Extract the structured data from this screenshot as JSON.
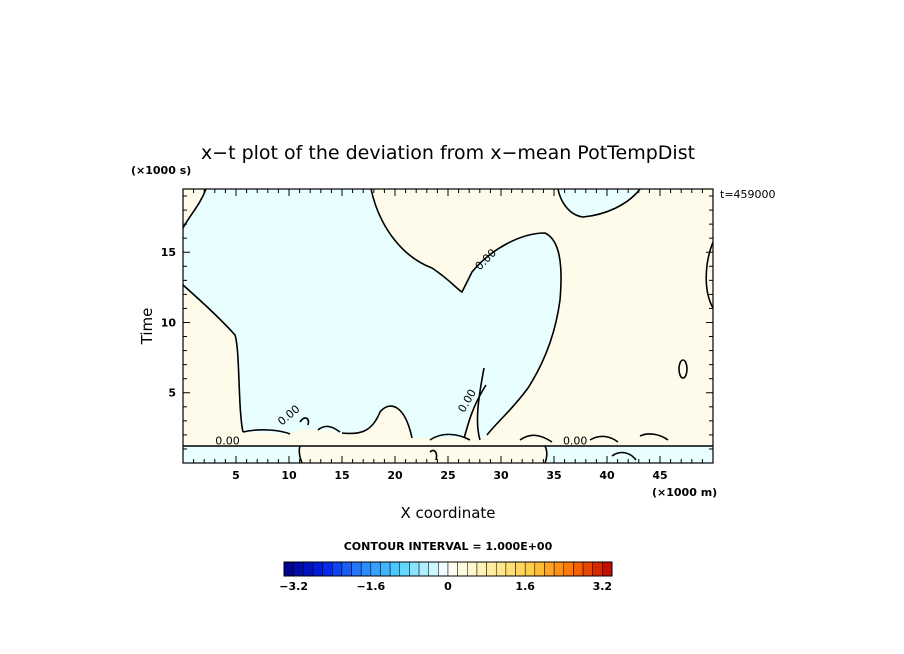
{
  "chart_data": {
    "type": "heatmap",
    "title": "x−t plot of the deviation from x−mean PotTempDist",
    "xlabel": "X coordinate",
    "ylabel": "Time",
    "x_unit": "(×1000 m)",
    "y_unit": "(×1000 s)",
    "time_stamp": "t=459000",
    "xlim": [
      0,
      50
    ],
    "ylim": [
      0,
      19.5
    ],
    "x_ticks": [
      5,
      10,
      15,
      20,
      25,
      30,
      35,
      40,
      45
    ],
    "x_tick_labels": [
      "5",
      "10",
      "15",
      "20",
      "25",
      "30",
      "35",
      "40",
      "45"
    ],
    "y_ticks": [
      5,
      10,
      15
    ],
    "y_tick_labels": [
      "5",
      "10",
      "15"
    ],
    "contour_interval_text": "CONTOUR INTERVAL = 1.000E+00",
    "contour_labels": [
      {
        "text": "0.00",
        "x": 28.8,
        "y": 14.3,
        "rotate": -45
      },
      {
        "text": "0.00",
        "x": 27.1,
        "y": 4.3,
        "rotate": -60
      },
      {
        "text": "0.00",
        "x": 10.2,
        "y": 3.2,
        "rotate": -40
      },
      {
        "text": "0.00",
        "x": 4.2,
        "y": 1.3,
        "rotate": 0
      },
      {
        "text": "0.00",
        "x": 37.0,
        "y": 1.3,
        "rotate": 0
      }
    ],
    "regions": [
      {
        "name": "negative",
        "color": "#e8feff"
      },
      {
        "name": "positive",
        "color": "#fffbeb"
      }
    ],
    "colorbar": {
      "min": -3.4,
      "max": 3.4,
      "step": 0.2,
      "tick_values": [
        -3.2,
        -1.6,
        0,
        1.6,
        3.2
      ],
      "tick_labels": [
        "−3.2",
        "−1.6",
        "0",
        "1.6",
        "3.2"
      ]
    }
  }
}
